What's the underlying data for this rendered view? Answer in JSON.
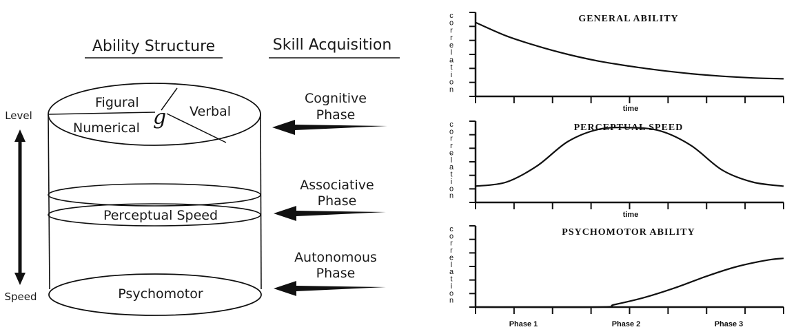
{
  "left": {
    "header_ability": "Ability Structure",
    "header_skill": "Skill Acquisition",
    "top_sections": {
      "figural": "Figural",
      "numerical": "Numerical",
      "verbal": "Verbal",
      "g": "g"
    },
    "middle_label": "Perceptual Speed",
    "bottom_label": "Psychomotor",
    "axis_top": "Level",
    "axis_bottom": "Speed",
    "phases": [
      {
        "line1": "Cognitive",
        "line2": "Phase"
      },
      {
        "line1": "Associative",
        "line2": "Phase"
      },
      {
        "line1": "Autonomous",
        "line2": "Phase"
      }
    ]
  },
  "chart_data": [
    {
      "type": "line",
      "title": "General Ability",
      "xlabel": "time",
      "ylabel": "correlation",
      "x": [
        0,
        0.1,
        0.2,
        0.3,
        0.4,
        0.5,
        0.6,
        0.7,
        0.8,
        0.9,
        1.0
      ],
      "values": [
        0.88,
        0.72,
        0.6,
        0.5,
        0.42,
        0.36,
        0.31,
        0.27,
        0.24,
        0.22,
        0.21
      ]
    },
    {
      "type": "line",
      "title": "Perceptual Speed",
      "xlabel": "time",
      "ylabel": "correlation",
      "x": [
        0,
        0.1,
        0.2,
        0.3,
        0.4,
        0.5,
        0.6,
        0.7,
        0.8,
        0.9,
        1.0
      ],
      "values": [
        0.2,
        0.25,
        0.45,
        0.75,
        0.9,
        0.92,
        0.88,
        0.7,
        0.4,
        0.25,
        0.2
      ]
    },
    {
      "type": "line",
      "title": "Psychomotor Ability",
      "ylabel": "correlation",
      "categories": [
        "Phase 1",
        "Phase 2",
        "Phase 3"
      ],
      "x": [
        0,
        0.4,
        0.45,
        0.55,
        0.65,
        0.75,
        0.85,
        0.95,
        1.0
      ],
      "values": [
        0,
        0,
        0.03,
        0.12,
        0.24,
        0.38,
        0.5,
        0.58,
        0.6
      ]
    }
  ],
  "colors": {
    "ink": "#111111",
    "background": "#ffffff"
  }
}
